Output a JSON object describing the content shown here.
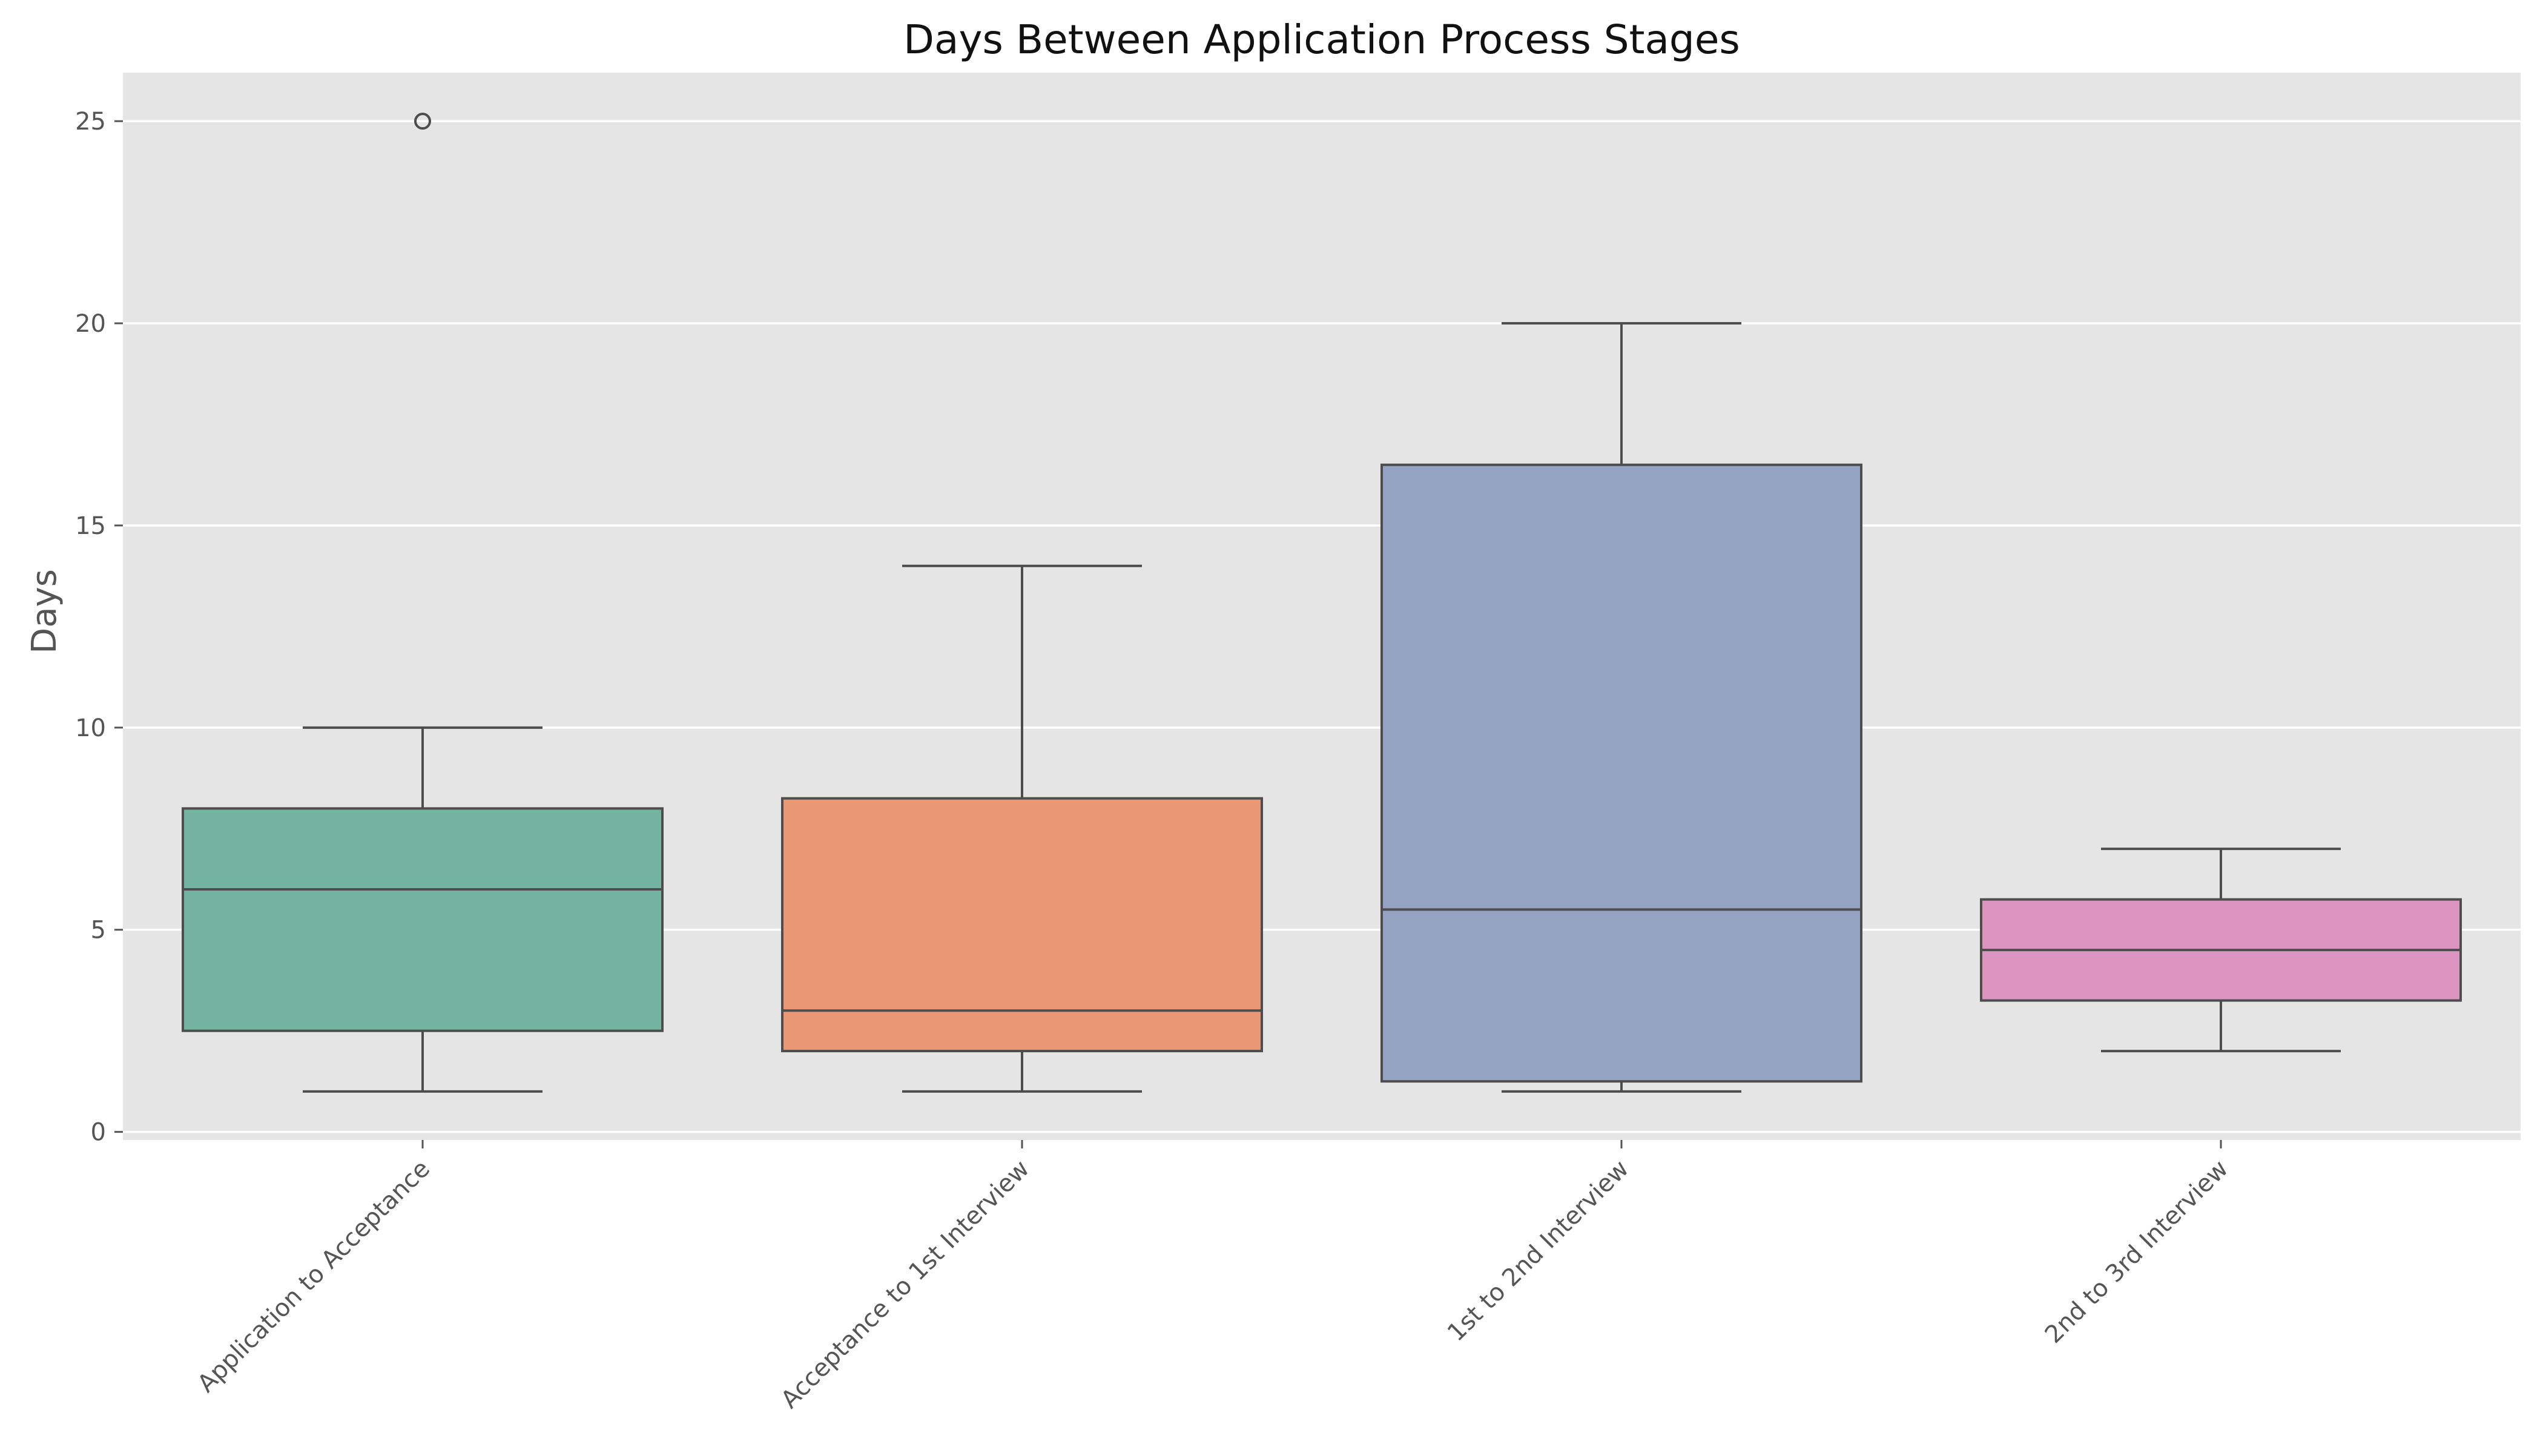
{
  "chart_data": {
    "type": "box",
    "title": "Days Between Application Process Stages",
    "xlabel": "",
    "ylabel": "Days",
    "ylim": [
      -0.2,
      26.2
    ],
    "yticks": [
      0,
      5,
      10,
      15,
      20,
      25
    ],
    "grid": true,
    "background": "#e5e5e5",
    "categories": [
      "Application to Acceptance",
      "Acceptance to 1st Interview",
      "1st to 2nd Interview",
      "2nd to 3rd Interview"
    ],
    "boxes": [
      {
        "category": "Application to Acceptance",
        "whisker_low": 1,
        "q1": 2.5,
        "median": 6,
        "q3": 8,
        "whisker_high": 10,
        "outliers": [
          25
        ],
        "color": "#73b3a0"
      },
      {
        "category": "Acceptance to 1st Interview",
        "whisker_low": 1,
        "q1": 2,
        "median": 3,
        "q3": 8.25,
        "whisker_high": 14,
        "outliers": [],
        "color": "#e99775"
      },
      {
        "category": "1st to 2nd Interview",
        "whisker_low": 1,
        "q1": 1.25,
        "median": 5.5,
        "q3": 16.5,
        "whisker_high": 20,
        "outliers": [],
        "color": "#95a3c2"
      },
      {
        "category": "2nd to 3rd Interview",
        "whisker_low": 2,
        "q1": 3.25,
        "median": 4.5,
        "q3": 5.75,
        "whisker_high": 7,
        "outliers": [],
        "color": "#dc94c0"
      }
    ]
  }
}
